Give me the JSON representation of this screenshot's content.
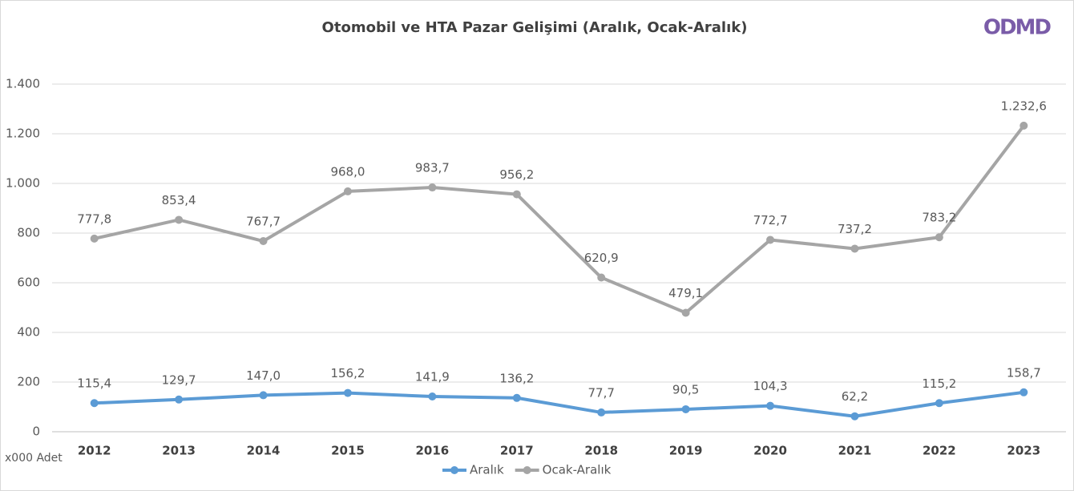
{
  "chart_data": {
    "type": "line",
    "title": "Otomobil ve HTA Pazar Gelişimi (Aralık, Ocak-Aralık)",
    "logo": "ODMD",
    "y_unit_label": "x000 Adet",
    "categories": [
      "2012",
      "2013",
      "2014",
      "2015",
      "2016",
      "2017",
      "2018",
      "2019",
      "2020",
      "2021",
      "2022",
      "2023"
    ],
    "series": [
      {
        "name": "Aralık",
        "color": "#5b9bd5",
        "values": [
          115.4,
          129.7,
          147.0,
          156.2,
          141.9,
          136.2,
          77.7,
          90.5,
          104.3,
          62.2,
          115.2,
          158.7
        ],
        "value_labels": [
          "115,4",
          "129,7",
          "147,0",
          "156,2",
          "141,9",
          "136,2",
          "77,7",
          "90,5",
          "104,3",
          "62,2",
          "115,2",
          "158,7"
        ]
      },
      {
        "name": "Ocak-Aralık",
        "color": "#a5a5a5",
        "values": [
          777.8,
          853.4,
          767.7,
          968.0,
          983.7,
          956.2,
          620.9,
          479.1,
          772.7,
          737.2,
          783.2,
          1232.6
        ],
        "value_labels": [
          "777,8",
          "853,4",
          "767,7",
          "968,0",
          "983,7",
          "956,2",
          "620,9",
          "479,1",
          "772,7",
          "737,2",
          "783,2",
          "1.232,6"
        ]
      }
    ],
    "ylim": [
      0,
      1400
    ],
    "yticks": [
      0,
      200,
      400,
      600,
      800,
      {
        "value": 1000,
        "label": "1.000"
      },
      {
        "value": 1200,
        "label": "1.200"
      },
      {
        "value": 1400,
        "label": "1.400"
      }
    ],
    "grid": true,
    "legend": "bottom"
  }
}
